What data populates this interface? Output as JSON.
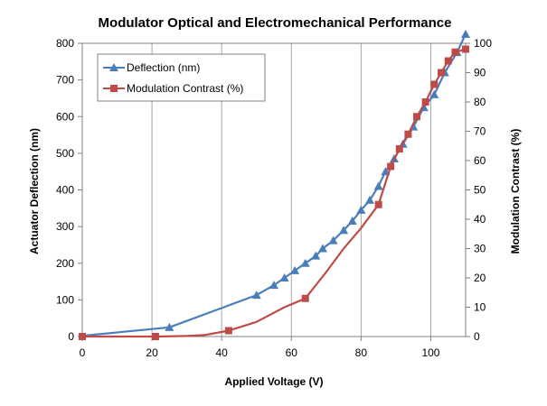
{
  "colors": {
    "deflection": "#4a7ebb",
    "contrast": "#be4b48",
    "grid": "#a6a6a6",
    "axis": "#808080"
  },
  "chart_data": {
    "type": "line",
    "title": "Modulator Optical and Electromechanical Performance",
    "xlabel": "Applied Voltage (V)",
    "ylabel": "Actuator Deflection (nm)",
    "y2label": "Modulation Contrast (%)",
    "xlim": [
      0,
      110
    ],
    "ylim": [
      0,
      800
    ],
    "y2lim": [
      0,
      100
    ],
    "x_ticks": [
      0,
      20,
      40,
      60,
      80,
      100
    ],
    "y_ticks": [
      0,
      100,
      200,
      300,
      400,
      500,
      600,
      700,
      800
    ],
    "y2_ticks": [
      0,
      10,
      20,
      30,
      40,
      50,
      60,
      70,
      80,
      90,
      100
    ],
    "grid": "vertical",
    "legend": "top-left",
    "series": [
      {
        "name": "Deflection (nm)",
        "axis": "left",
        "marker": "triangle",
        "x": [
          0,
          25,
          50,
          55,
          58,
          61,
          64,
          67,
          69,
          72,
          75,
          77.5,
          80,
          82.5,
          85,
          87,
          89.5,
          92,
          95,
          98,
          101,
          104,
          107.5,
          110
        ],
        "y": [
          2,
          25,
          113,
          140,
          160,
          180,
          200,
          220,
          240,
          262,
          290,
          315,
          345,
          372,
          410,
          450,
          485,
          525,
          572,
          625,
          660,
          720,
          775,
          825
        ],
        "markers_x": [
          25,
          50,
          55,
          58,
          61,
          64,
          67,
          69,
          72,
          75,
          77.5,
          80,
          82.5,
          85,
          87,
          89.5,
          92,
          95,
          98,
          101,
          104,
          107.5,
          110
        ],
        "markers_y": [
          25,
          113,
          140,
          160,
          180,
          200,
          220,
          240,
          262,
          290,
          315,
          345,
          372,
          410,
          450,
          485,
          525,
          572,
          625,
          660,
          720,
          775,
          825
        ]
      },
      {
        "name": "Modulation Contrast (%)",
        "axis": "right",
        "marker": "square",
        "x": [
          0,
          21,
          30,
          35,
          42,
          50,
          58,
          64,
          70,
          75,
          80,
          85,
          88.5,
          91,
          93.5,
          96,
          98.5,
          101,
          103,
          105,
          107,
          110
        ],
        "y": [
          0,
          0,
          0.2,
          0.5,
          2,
          5,
          10,
          13,
          22,
          30,
          37,
          45,
          58,
          64,
          69,
          75,
          80,
          86,
          90,
          94,
          97,
          98
        ],
        "markers_x": [
          0,
          21,
          42,
          64,
          85,
          88.5,
          91,
          93.5,
          96,
          98.5,
          101,
          103,
          105,
          107,
          110
        ],
        "markers_y": [
          0,
          0,
          2,
          13,
          45,
          58,
          64,
          69,
          75,
          80,
          86,
          90,
          94,
          97,
          98
        ]
      }
    ]
  }
}
